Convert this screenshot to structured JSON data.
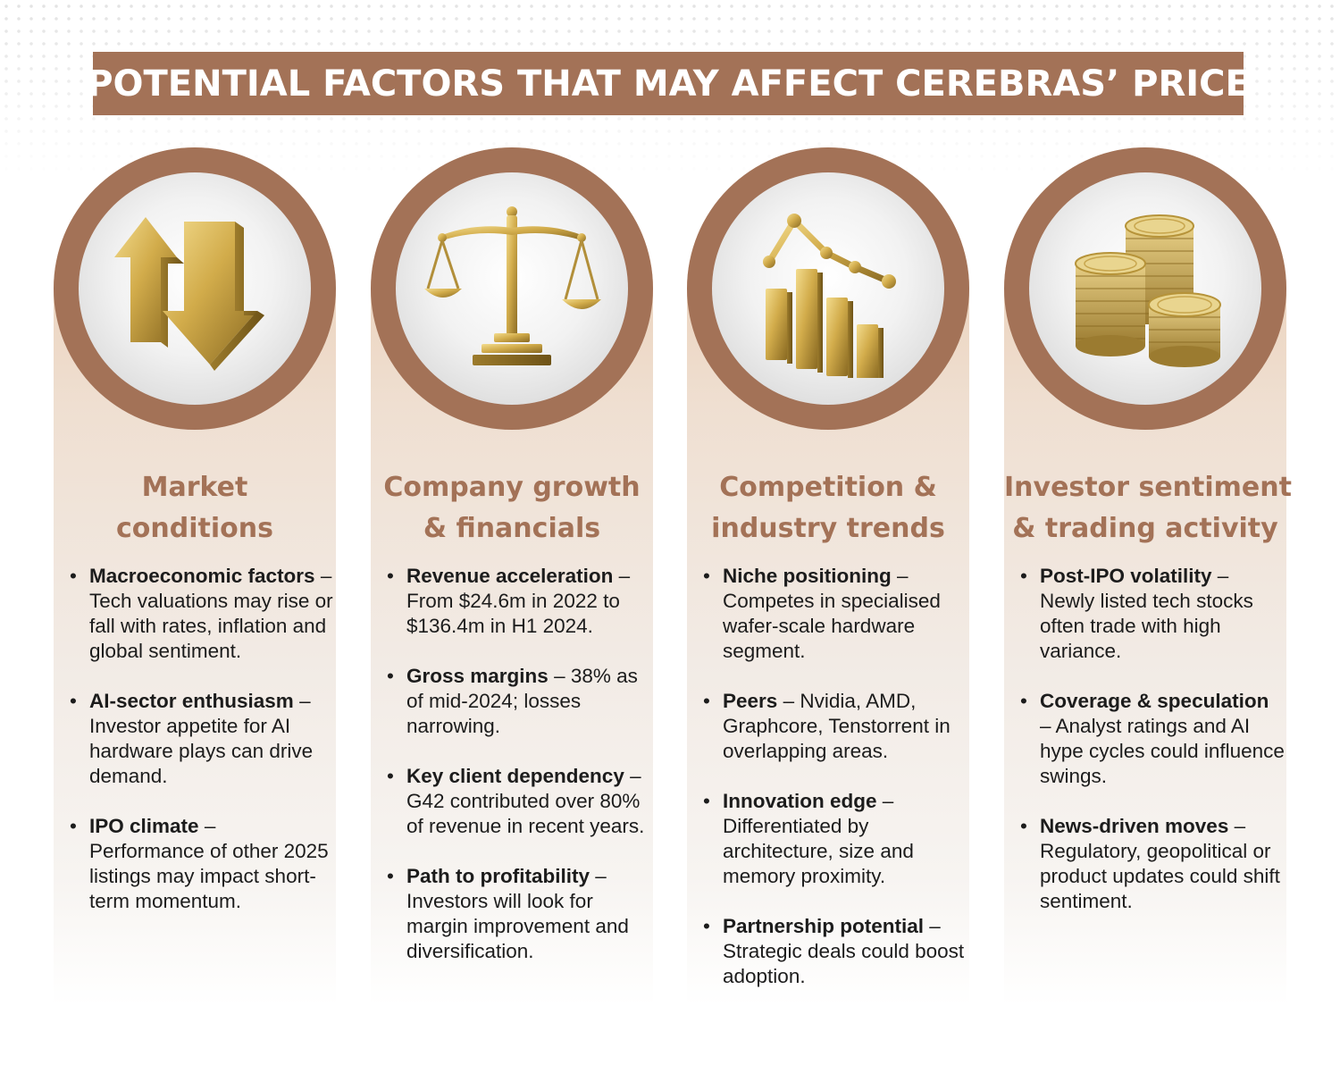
{
  "title": "POTENTIAL FACTORS THAT MAY AFFECT CEREBRAS’ PRICE",
  "colors": {
    "brand": "#a37257",
    "gold": "#c9a645",
    "text": "#1c1c1c"
  },
  "cards": [
    {
      "icon": "up-down-arrows-icon",
      "title_line1": "Market",
      "title_line2": "conditions",
      "bullets": [
        {
          "head": "Macroeconomic factors",
          "sep": " – ",
          "body": "Tech valuations may rise or fall with rates, inflation and global sentiment."
        },
        {
          "head": "AI-sector enthusiasm",
          "sep": " – ",
          "body": "Investor appetite for AI hardware plays can drive demand."
        },
        {
          "head": "IPO climate",
          "sep": " – ",
          "body": "Performance of other 2025 listings may impact short-term momentum."
        }
      ]
    },
    {
      "icon": "balance-scale-icon",
      "title_line1": "Company growth",
      "title_line2": "& financials",
      "bullets": [
        {
          "head": "Revenue acceleration",
          "sep": " – ",
          "body": "From $24.6m in 2022 to $136.4m in H1 2024."
        },
        {
          "head": "Gross margins",
          "sep": " – ",
          "body": "38% as of mid-2024; losses narrowing."
        },
        {
          "head": "Key client dependency",
          "sep": " – ",
          "body": "G42 contributed over 80% of revenue in recent years."
        },
        {
          "head": "Path to profitability",
          "sep": " – ",
          "body": "Investors will look for margin improvement and diversification."
        }
      ]
    },
    {
      "icon": "bar-chart-trend-icon",
      "title_line1": "Competition &",
      "title_line2": "industry trends",
      "bullets": [
        {
          "head": "Niche positioning",
          "sep": " – ",
          "body": "Competes in specialised wafer-scale hardware segment."
        },
        {
          "head": "Peers",
          "sep": " – ",
          "body": "Nvidia, AMD, Graphcore, Tenstorrent in overlapping areas."
        },
        {
          "head": "Innovation edge",
          "sep": " – ",
          "body": "Differentiated by architecture, size and memory proximity."
        },
        {
          "head": "Partnership potential",
          "sep": " – ",
          "body": "Strategic deals could boost adoption."
        }
      ]
    },
    {
      "icon": "coin-stacks-icon",
      "title_line1": "Investor sentiment",
      "title_line2": "& trading activity",
      "bullets": [
        {
          "head": "Post-IPO volatility",
          "sep": " – ",
          "body": "Newly listed tech stocks often trade with high variance."
        },
        {
          "head": "Coverage & speculation",
          "sep": " – ",
          "body": "Analyst ratings and AI hype cycles could influence swings."
        },
        {
          "head": "News-driven moves",
          "sep": " – ",
          "body": "Regulatory, geopolitical or product updates could shift sentiment."
        }
      ]
    }
  ]
}
